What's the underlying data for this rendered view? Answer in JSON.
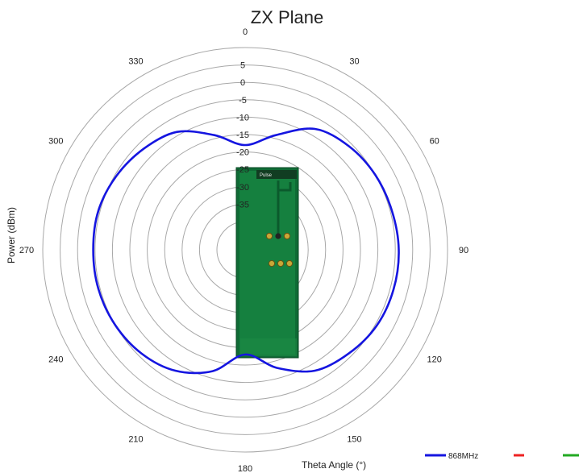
{
  "chart_data": {
    "type": "polar-line",
    "title": "ZX Plane",
    "radial_axis_label": "Power (dBm)",
    "angular_axis_label": "Theta  Angle (°)",
    "radial_ticks": [
      "5",
      "0",
      "-5",
      "-10",
      "-15",
      "-20",
      "-25",
      "-30",
      "-35"
    ],
    "radial_range": [
      -40,
      10
    ],
    "angle_ticks": [
      "0",
      "30",
      "60",
      "90",
      "120",
      "150",
      "180",
      "210",
      "240",
      "270",
      "300",
      "330"
    ],
    "grid": true,
    "legend_position": "bottom-right",
    "series": [
      {
        "name": "868MHz",
        "color": "#1515e0",
        "theta_deg": [
          0,
          15,
          30,
          45,
          60,
          75,
          90,
          105,
          120,
          135,
          150,
          165,
          180,
          195,
          210,
          225,
          240,
          255,
          270,
          285,
          300,
          315,
          330,
          345
        ],
        "power_dbm": [
          -18,
          -14,
          -8,
          -6,
          -5,
          -4.5,
          -4,
          -4,
          -4.5,
          -6,
          -8,
          -13,
          -18,
          -12,
          -8,
          -6,
          -5,
          -4.5,
          -4.5,
          -4.5,
          -5.5,
          -7,
          -9,
          -14
        ]
      },
      {
        "name": "",
        "color": "#ee2222",
        "theta_deg": [],
        "power_dbm": []
      },
      {
        "name": "",
        "color": "#22aa22",
        "theta_deg": [],
        "power_dbm": []
      }
    ],
    "inset_image": {
      "description": "antenna-pcb-photo",
      "board_text": "Pulse"
    }
  }
}
